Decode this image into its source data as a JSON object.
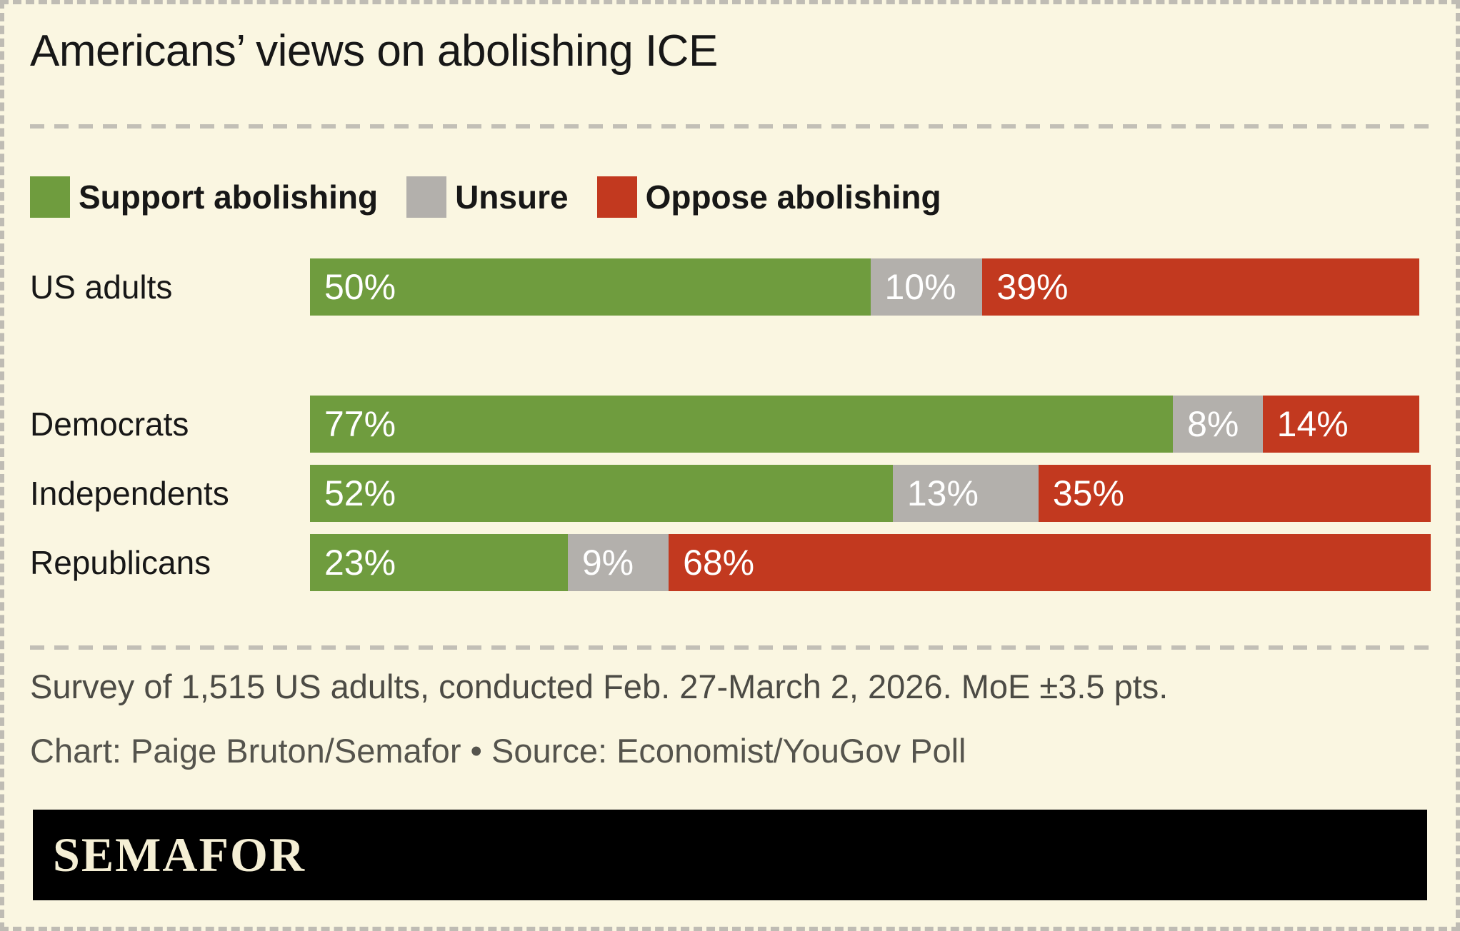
{
  "chart_data": {
    "type": "bar",
    "orientation": "horizontal",
    "stacked": true,
    "title": "Americans’ views on abolishing ICE",
    "categories": [
      "US adults",
      "Democrats",
      "Independents",
      "Republicans"
    ],
    "series": [
      {
        "name": "Support abolishing",
        "color": "#6f9c3e",
        "values": [
          50,
          77,
          52,
          23
        ]
      },
      {
        "name": "Unsure",
        "color": "#b3b0ac",
        "values": [
          10,
          8,
          13,
          9
        ]
      },
      {
        "name": "Oppose abolishing",
        "color": "#c2391f",
        "values": [
          39,
          14,
          35,
          68
        ]
      }
    ],
    "xlim": [
      0,
      100
    ],
    "value_suffix": "%",
    "legend_position": "top",
    "grid": false
  },
  "footer": {
    "note": "Survey of 1,515 US adults, conducted Feb. 27-March 2, 2026. MoE ±3.5 pts.",
    "credit": "Chart: Paige Bruton/Semafor • Source: Economist/YouGov Poll"
  },
  "brand": {
    "logo_text": "SEMAFOR"
  },
  "colors": {
    "background": "#faf6e1",
    "support": "#6f9c3e",
    "unsure": "#b3b0ac",
    "oppose": "#c2391f",
    "text": "#171717",
    "note_text": "#4c4b45",
    "credit_text": "#55544d",
    "divider": "#c2bfb6",
    "logo_bar": "#000000",
    "logo_text": "#f5efd5"
  }
}
